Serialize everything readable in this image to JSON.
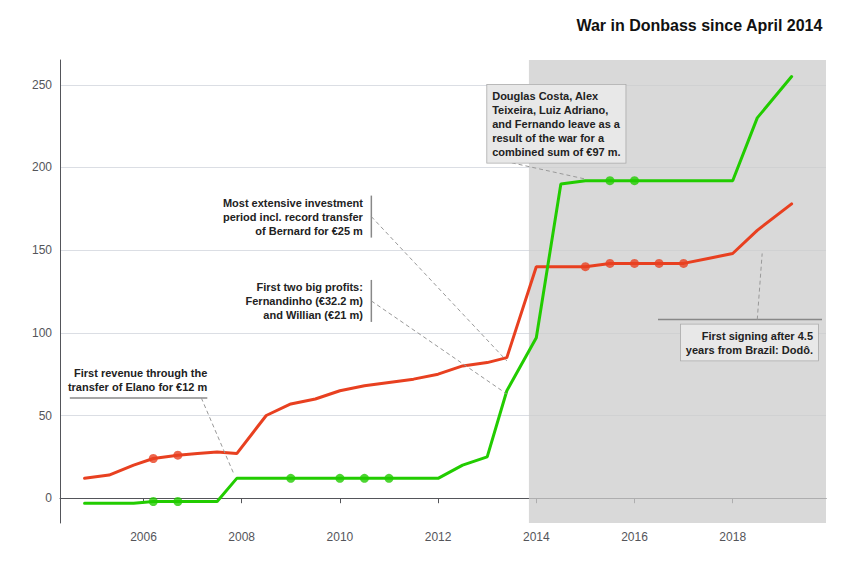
{
  "chart_data": {
    "type": "line",
    "title": "War in Donbass since April 2014",
    "series": [
      {
        "type": "line",
        "color": "#e84020",
        "x": [
          2004.8,
          2005.3,
          2005.8,
          2006.2,
          2006.7,
          2007.1,
          2007.5,
          2007.9,
          2008.5,
          2009.0,
          2009.5,
          2010.0,
          2010.5,
          2011.0,
          2011.5,
          2012.0,
          2012.5,
          2013.0,
          2013.4,
          2014.0,
          2014.5,
          2015.0,
          2015.5,
          2016.0,
          2016.5,
          2017.0,
          2017.5,
          2018.0,
          2018.5,
          2019.2
        ],
        "values": [
          12,
          14,
          20,
          24,
          26,
          27,
          28,
          27,
          50,
          57,
          60,
          65,
          68,
          70,
          72,
          75,
          80,
          82,
          85,
          140,
          140,
          140,
          142,
          142,
          142,
          142,
          145,
          148,
          162,
          178
        ]
      },
      {
        "type": "line",
        "color": "#22cc00",
        "x": [
          2004.8,
          2005.3,
          2005.8,
          2006.2,
          2006.7,
          2007.1,
          2007.5,
          2007.9,
          2008.5,
          2009.0,
          2009.5,
          2010.0,
          2010.5,
          2011.0,
          2011.5,
          2012.0,
          2012.5,
          2013.0,
          2013.4,
          2014.0,
          2014.5,
          2015.0,
          2015.5,
          2016.0,
          2016.5,
          2017.0,
          2017.5,
          2018.0,
          2018.5,
          2019.2
        ],
        "values": [
          -3,
          -3,
          -3,
          -2,
          -2,
          -2,
          -2,
          12,
          12,
          12,
          12,
          12,
          12,
          12,
          12,
          12,
          20,
          25,
          65,
          97,
          190,
          192,
          192,
          192,
          192,
          192,
          192,
          192,
          230,
          255
        ]
      },
      {
        "type": "scatter",
        "color": "#e84020",
        "marker": "circle",
        "x": [
          2006.2,
          2006.7,
          2015.0,
          2015.5,
          2016.0,
          2016.5,
          2017.0
        ],
        "values": [
          24,
          26,
          140,
          142,
          142,
          142,
          142
        ]
      },
      {
        "type": "scatter",
        "color": "#22cc00",
        "marker": "circle",
        "x": [
          2006.2,
          2006.7,
          2009.0,
          2010.0,
          2010.5,
          2011.0,
          2015.5,
          2016.0
        ],
        "values": [
          -2,
          -2,
          12,
          12,
          12,
          12,
          192,
          192
        ]
      }
    ],
    "xlim": [
      2004.3,
      2019.9
    ],
    "xticks": [
      2006,
      2008,
      2010,
      2012,
      2014,
      2016,
      2018
    ],
    "ylim": [
      -15,
      265
    ],
    "yticks": [
      0,
      50,
      100,
      150,
      200,
      250
    ],
    "grid": true,
    "shaded": {
      "from": 2013.85,
      "color": "#cccccc"
    },
    "annotations": [
      "First revenue through the\ntransfer of Elano for €12 m",
      "Most extensive investment\nperiod incl. record transfer\nof Bernard for €25 m",
      "First two big profits:\nFernandinho (€32.2 m)\nand Willian (€21 m)",
      "Douglas Costa, Alex\nTeixeira, Luiz Adriano,\nand Fernando leave as a\nresult of the war for a\ncombined sum of €97 m.",
      "First signing after 4.5\nyears from Brazil: Dodô."
    ]
  }
}
